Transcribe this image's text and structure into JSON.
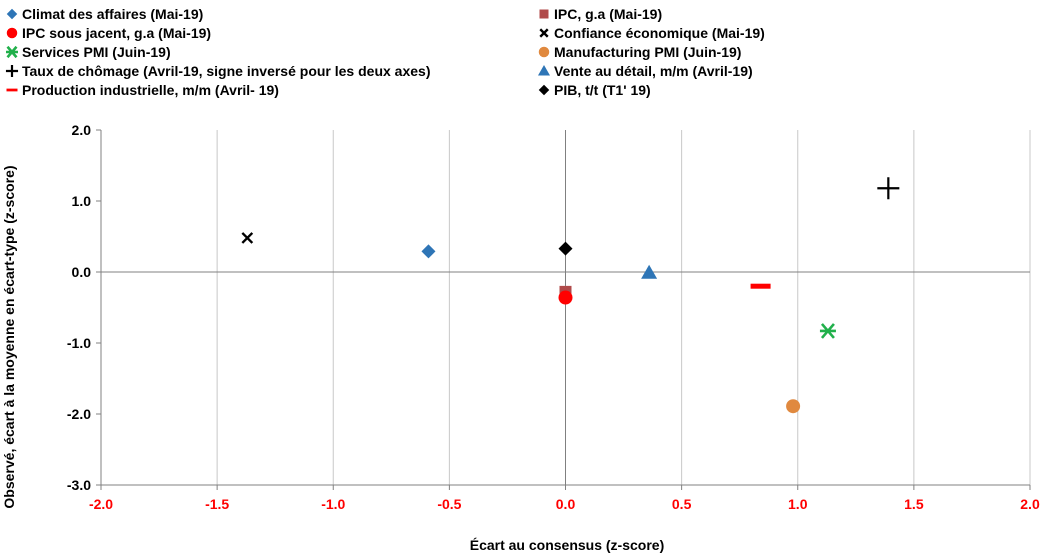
{
  "chart_data": {
    "type": "scatter",
    "xlabel": "Écart au consensus (z-score)",
    "ylabel": "Observé, écart à la moyenne en écart-type (z-score)",
    "xlim": [
      -2.0,
      2.0
    ],
    "ylim": [
      -3.0,
      2.0
    ],
    "x_ticks": [
      -2.0,
      -1.5,
      -1.0,
      -0.5,
      0.0,
      0.5,
      1.0,
      1.5,
      2.0
    ],
    "y_ticks": [
      2.0,
      1.0,
      0.0,
      -1.0,
      -2.0,
      -3.0
    ],
    "x_tick_labels": [
      "-2.0",
      "-1.5",
      "-1.0",
      "-0.5",
      "0.0",
      "0.5",
      "1.0",
      "1.5",
      "2.0"
    ],
    "y_tick_labels": [
      "2.0",
      "1.0",
      "0.0",
      "-1.0",
      "-2.0",
      "-3.0"
    ],
    "grid": "vertical",
    "legend_position": "top",
    "series": [
      {
        "name": "Climat des affaires (Mai-19)",
        "marker": "diamond",
        "color": "#2e75b6",
        "x": -0.59,
        "y": 0.29
      },
      {
        "name": "IPC, g.a (Mai-19)",
        "marker": "square",
        "color": "#b04a4a",
        "x": 0.0,
        "y": -0.28
      },
      {
        "name": "IPC sous jacent, g.a (Mai-19)",
        "marker": "circle",
        "color": "#ff0000",
        "x": 0.0,
        "y": -0.36
      },
      {
        "name": "Confiance économique  (Mai-19)",
        "marker": "x",
        "color": "#000000",
        "x": -1.37,
        "y": 0.48
      },
      {
        "name": "Services PMI (Juin-19)",
        "marker": "star",
        "color": "#21b04b",
        "x": 1.13,
        "y": -0.83
      },
      {
        "name": "Manufacturing PMI (Juin-19)",
        "marker": "circle",
        "color": "#e0893f",
        "x": 0.98,
        "y": -1.89
      },
      {
        "name": "Taux de chômage (Avril-19, signe inversé pour les deux axes)",
        "marker": "plus",
        "color": "#000000",
        "x": 1.39,
        "y": 1.18
      },
      {
        "name": "Vente au détail, m/m  (Avril-19)",
        "marker": "triangle",
        "color": "#2e75b6",
        "x": 0.36,
        "y": -0.01
      },
      {
        "name": "Production industrielle, m/m (Avril- 19)",
        "marker": "dash",
        "color": "#ff0000",
        "x": 0.84,
        "y": -0.2
      },
      {
        "name": "PIB, t/t (T1' 19)",
        "marker": "diamond",
        "color": "#000000",
        "x": 0.0,
        "y": 0.33
      }
    ]
  }
}
